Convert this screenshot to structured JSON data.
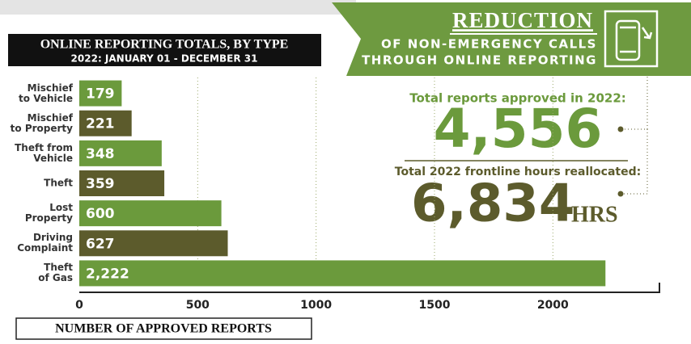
{
  "chart_data": {
    "type": "bar",
    "orientation": "horizontal",
    "title": "ONLINE REPORTING TOTALS, BY TYPE",
    "subtitle": "2022: JANUARY 01 - DECEMBER 31",
    "x_label": "NUMBER OF APPROVED REPORTS",
    "categories": [
      "Mischief\nto Vehicle",
      "Mischief\nto Property",
      "Theft from\nVehicle",
      "Theft",
      "Lost\nProperty",
      "Driving\nComplaint",
      "Theft\nof Gas"
    ],
    "values": [
      179,
      221,
      348,
      359,
      600,
      627,
      2222
    ],
    "value_labels": [
      "179",
      "221",
      "348",
      "359",
      "600",
      "627",
      "2,222"
    ],
    "colors": [
      "#6b9a3c",
      "#5c5b2c",
      "#6b9a3c",
      "#5c5b2c",
      "#6b9a3c",
      "#5c5b2c",
      "#6b9a3c"
    ],
    "xlim": [
      0,
      2450
    ],
    "xticks": [
      0,
      500,
      1000,
      1500,
      2000
    ],
    "grid": true
  },
  "banner": {
    "title": "REDUCTION",
    "line1": "OF NON-EMERGENCY CALLS",
    "line2": "THROUGH ONLINE REPORTING"
  },
  "stats": {
    "reports_label": "Total reports approved in 2022:",
    "reports_value": "4,556",
    "hours_label": "Total 2022 frontline hours reallocated:",
    "hours_value": "6,834",
    "hours_unit": "HRS"
  }
}
